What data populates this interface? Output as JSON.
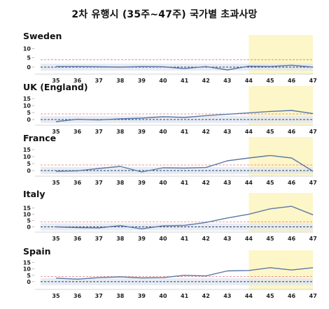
{
  "title": "2차 유행시 (35주~47주) 국가별 초과사망",
  "colors": {
    "line": "#5b78a8",
    "band": "#dfe5f0",
    "highlight": "#fdf6c8",
    "threshold": "#e07a7a",
    "zero": "#2b3f63",
    "axis": "#888888"
  },
  "chart_data": [
    {
      "type": "line",
      "title": "Sweden",
      "x": [
        35,
        36,
        37,
        38,
        39,
        40,
        41,
        42,
        43,
        44,
        45,
        46,
        47
      ],
      "y_ticks": [
        0,
        5,
        10
      ],
      "ylim": [
        -3,
        12
      ],
      "highlight_x": [
        44,
        47
      ],
      "series": [
        {
          "values": [
            0.3,
            0.3,
            0.2,
            0.0,
            0.3,
            0.2,
            -0.8,
            0.3,
            -1.5,
            0.5,
            0.3,
            1.0,
            0.0
          ]
        }
      ]
    },
    {
      "type": "line",
      "title": "UK (England)",
      "x": [
        35,
        36,
        37,
        38,
        39,
        40,
        41,
        42,
        43,
        44,
        45,
        46,
        47
      ],
      "y_ticks": [
        0,
        5,
        10,
        15
      ],
      "ylim": [
        -3,
        17
      ],
      "highlight_x": [
        44,
        47
      ],
      "series": [
        {
          "values": [
            -1.5,
            0.2,
            -0.3,
            0.5,
            1.0,
            2.0,
            1.5,
            2.8,
            3.8,
            4.8,
            5.8,
            6.5,
            4.3
          ]
        }
      ]
    },
    {
      "type": "line",
      "title": "France",
      "x": [
        35,
        36,
        37,
        38,
        39,
        40,
        41,
        42,
        43,
        44,
        45,
        46,
        47
      ],
      "y_ticks": [
        0,
        5,
        10,
        15
      ],
      "ylim": [
        -3,
        17
      ],
      "highlight_x": [
        44,
        47
      ],
      "series": [
        {
          "values": [
            -0.5,
            -0.2,
            1.5,
            3.0,
            -1.0,
            2.0,
            1.8,
            2.2,
            7.0,
            9.0,
            10.8,
            9.0,
            -0.5
          ]
        }
      ]
    },
    {
      "type": "line",
      "title": "Italy",
      "x": [
        35,
        36,
        37,
        38,
        39,
        40,
        41,
        42,
        43,
        44,
        45,
        46,
        47
      ],
      "y_ticks": [
        0,
        5,
        10,
        15
      ],
      "ylim": [
        -3,
        19
      ],
      "highlight_x": [
        44,
        47
      ],
      "series": [
        {
          "values": [
            0.0,
            -0.5,
            -0.8,
            1.0,
            -1.5,
            0.8,
            1.2,
            3.5,
            7.0,
            10.0,
            14.2,
            16.2,
            9.5
          ]
        }
      ]
    },
    {
      "type": "line",
      "title": "Spain",
      "x": [
        35,
        36,
        37,
        38,
        39,
        40,
        41,
        42,
        43,
        44,
        45,
        46,
        47
      ],
      "y_ticks": [
        0,
        5,
        10,
        15
      ],
      "ylim": [
        -5,
        17
      ],
      "highlight_x": [
        44,
        47
      ],
      "series": [
        {
          "values": [
            2.8,
            2.0,
            3.2,
            3.8,
            3.0,
            3.2,
            5.0,
            4.5,
            8.5,
            8.8,
            11.0,
            9.2,
            11.0
          ]
        }
      ]
    }
  ]
}
